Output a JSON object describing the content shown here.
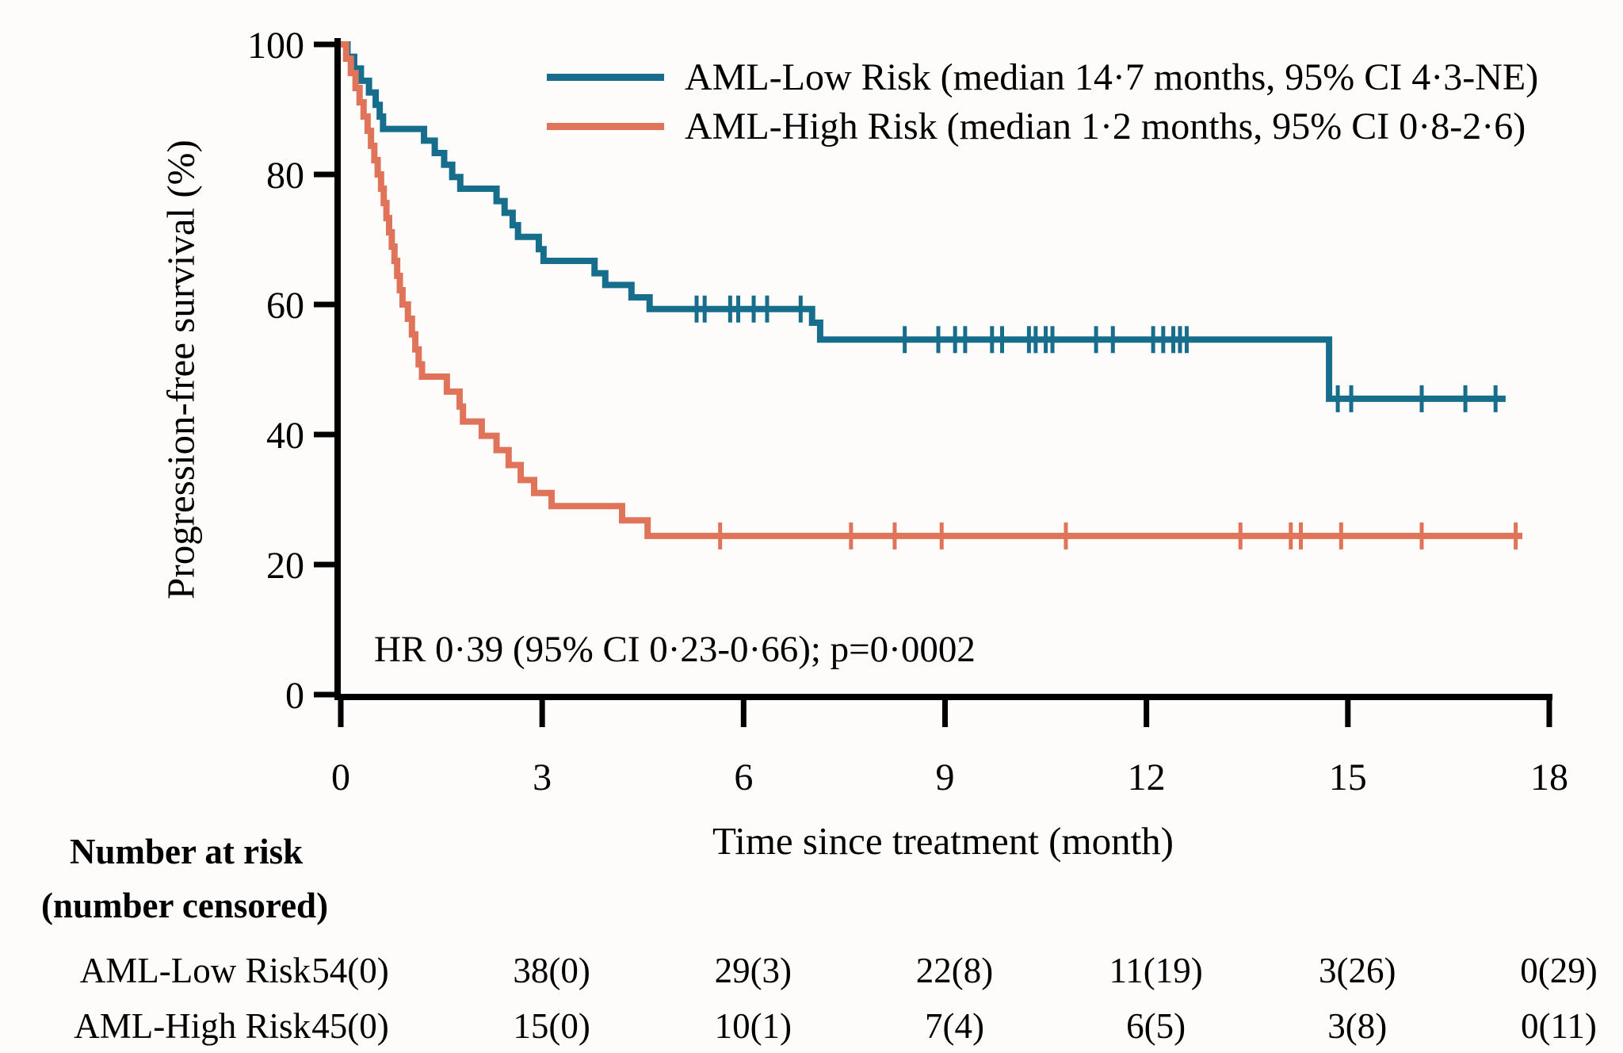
{
  "figure": {
    "y_axis_label": "Progression-free survival (%)",
    "x_axis_label": "Time since treatment (month)",
    "hr_annotation": "HR 0·39 (95% CI 0·23-0·66); p=0·0002",
    "background_color": "#fdfcfb",
    "axis_color": "#000000"
  },
  "chart_data": {
    "type": "line",
    "subtype": "kaplan-meier-step",
    "title": "",
    "xlabel": "Time since treatment (month)",
    "ylabel": "Progression-free survival (%)",
    "xlim": [
      0,
      18
    ],
    "ylim": [
      0,
      100
    ],
    "x_ticks": [
      0,
      3,
      6,
      9,
      12,
      15,
      18
    ],
    "y_ticks": [
      0,
      20,
      40,
      60,
      80,
      100
    ],
    "grid": false,
    "legend_position": "upper right inside",
    "series": [
      {
        "name": "AML-Low Risk",
        "legend_label": "AML-Low Risk (median 14·7 months, 95% CI 4·3-NE)",
        "color": "#176e8c",
        "median_months": "14·7",
        "ci_95": "4·3-NE",
        "end_x": 17.35,
        "steps": [
          [
            0,
            100
          ],
          [
            0.1,
            98.1
          ],
          [
            0.2,
            96.3
          ],
          [
            0.3,
            94.4
          ],
          [
            0.42,
            92.6
          ],
          [
            0.52,
            90.7
          ],
          [
            0.58,
            88.9
          ],
          [
            0.63,
            87.0
          ],
          [
            1.24,
            85.2
          ],
          [
            1.4,
            83.3
          ],
          [
            1.54,
            81.5
          ],
          [
            1.66,
            79.6
          ],
          [
            1.78,
            77.8
          ],
          [
            2.32,
            75.9
          ],
          [
            2.44,
            74.1
          ],
          [
            2.56,
            72.2
          ],
          [
            2.64,
            70.4
          ],
          [
            2.95,
            68.5
          ],
          [
            3.02,
            66.7
          ],
          [
            3.78,
            64.8
          ],
          [
            3.94,
            63.0
          ],
          [
            4.33,
            61.1
          ],
          [
            4.6,
            59.3
          ],
          [
            7.02,
            57.2
          ],
          [
            7.14,
            54.6
          ],
          [
            14.72,
            45.5
          ]
        ],
        "censor_marks_x": [
          5.3,
          5.42,
          5.8,
          5.92,
          6.15,
          6.35,
          6.85,
          8.4,
          8.9,
          9.15,
          9.3,
          9.7,
          9.85,
          10.25,
          10.35,
          10.5,
          10.6,
          11.25,
          11.5,
          12.1,
          12.25,
          12.4,
          12.5,
          12.6,
          14.85,
          15.05,
          16.1,
          16.75,
          17.2
        ]
      },
      {
        "name": "AML-High Risk",
        "legend_label": "AML-High Risk (median 1·2 months, 95% CI 0·8-2·6)",
        "color": "#e0745a",
        "median_months": "1·2",
        "ci_95": "0·8-2·6",
        "end_x": 17.6,
        "steps": [
          [
            0,
            100
          ],
          [
            0.08,
            97.8
          ],
          [
            0.15,
            95.6
          ],
          [
            0.22,
            93.3
          ],
          [
            0.28,
            91.1
          ],
          [
            0.34,
            88.9
          ],
          [
            0.4,
            86.7
          ],
          [
            0.45,
            84.4
          ],
          [
            0.5,
            82.2
          ],
          [
            0.55,
            80.0
          ],
          [
            0.6,
            77.8
          ],
          [
            0.64,
            75.6
          ],
          [
            0.68,
            73.3
          ],
          [
            0.72,
            71.1
          ],
          [
            0.76,
            68.9
          ],
          [
            0.8,
            66.7
          ],
          [
            0.84,
            64.4
          ],
          [
            0.88,
            62.2
          ],
          [
            0.92,
            60.0
          ],
          [
            1.0,
            57.8
          ],
          [
            1.06,
            55.4
          ],
          [
            1.11,
            53.1
          ],
          [
            1.16,
            50.8
          ],
          [
            1.21,
            48.9
          ],
          [
            1.58,
            46.6
          ],
          [
            1.77,
            44.3
          ],
          [
            1.82,
            42.0
          ],
          [
            2.1,
            39.8
          ],
          [
            2.32,
            37.6
          ],
          [
            2.5,
            35.3
          ],
          [
            2.68,
            33.0
          ],
          [
            2.88,
            31.0
          ],
          [
            3.14,
            29.0
          ],
          [
            4.19,
            26.8
          ],
          [
            4.57,
            24.4
          ]
        ],
        "censor_marks_x": [
          5.65,
          7.6,
          8.25,
          8.95,
          10.8,
          13.4,
          14.15,
          14.3,
          14.9,
          16.1,
          17.5
        ]
      }
    ]
  },
  "risk_table": {
    "header_line1": "Number at risk",
    "header_line2": "(number censored)",
    "columns_at_months": [
      0,
      3,
      6,
      9,
      12,
      15,
      18
    ],
    "rows": [
      {
        "label": "AML-Low Risk",
        "values": [
          "54(0)",
          "38(0)",
          "29(3)",
          "22(8)",
          "11(19)",
          "3(26)",
          "0(29)"
        ]
      },
      {
        "label": "AML-High Risk",
        "values": [
          "45(0)",
          "15(0)",
          "10(1)",
          "7(4)",
          "6(5)",
          "3(8)",
          "0(11)"
        ]
      }
    ]
  }
}
